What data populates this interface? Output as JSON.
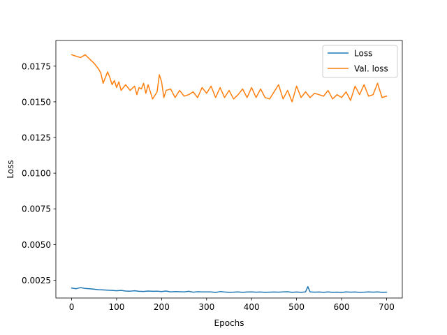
{
  "chart_data": {
    "type": "line",
    "title": "",
    "xlabel": "Epochs",
    "ylabel": "Loss",
    "xlim": [
      -35,
      735
    ],
    "ylim": [
      0.00125,
      0.0193
    ],
    "xticks": [
      0,
      100,
      200,
      300,
      400,
      500,
      600,
      700
    ],
    "xtick_labels": [
      "0",
      "100",
      "200",
      "300",
      "400",
      "500",
      "600",
      "700"
    ],
    "yticks": [
      0.0025,
      0.005,
      0.0075,
      0.01,
      0.0125,
      0.015,
      0.0175
    ],
    "ytick_labels": [
      "0.0025",
      "0.0050",
      "0.0075",
      "0.0100",
      "0.0125",
      "0.0150",
      "0.0175"
    ],
    "grid": false,
    "legend_position": "top-right",
    "series": [
      {
        "name": "Loss",
        "color": "#1f77b4",
        "x": [
          0,
          10,
          20,
          30,
          40,
          50,
          60,
          70,
          80,
          90,
          100,
          110,
          120,
          130,
          140,
          150,
          160,
          170,
          180,
          190,
          200,
          210,
          220,
          230,
          240,
          250,
          260,
          270,
          280,
          290,
          300,
          310,
          320,
          330,
          340,
          350,
          360,
          370,
          380,
          390,
          400,
          410,
          420,
          430,
          440,
          450,
          460,
          470,
          480,
          490,
          500,
          510,
          520,
          525,
          530,
          540,
          550,
          560,
          570,
          580,
          590,
          600,
          610,
          620,
          630,
          640,
          650,
          660,
          670,
          680,
          690,
          700
        ],
        "values": [
          0.00195,
          0.0019,
          0.00198,
          0.00192,
          0.0019,
          0.00187,
          0.00183,
          0.00182,
          0.0018,
          0.00178,
          0.00176,
          0.00178,
          0.00174,
          0.00173,
          0.00176,
          0.00172,
          0.00171,
          0.00174,
          0.00172,
          0.00173,
          0.0017,
          0.00174,
          0.00168,
          0.0017,
          0.00169,
          0.00168,
          0.00172,
          0.00166,
          0.00169,
          0.00168,
          0.00168,
          0.00168,
          0.00164,
          0.0017,
          0.00167,
          0.00165,
          0.00166,
          0.00168,
          0.00165,
          0.00167,
          0.00168,
          0.00166,
          0.00167,
          0.00165,
          0.00166,
          0.00167,
          0.00166,
          0.00168,
          0.00169,
          0.00165,
          0.00167,
          0.00165,
          0.00168,
          0.00205,
          0.00168,
          0.00166,
          0.00167,
          0.00165,
          0.00168,
          0.00165,
          0.00166,
          0.00164,
          0.00168,
          0.00166,
          0.00167,
          0.00165,
          0.00166,
          0.00168,
          0.00166,
          0.00168,
          0.00165,
          0.00166
        ]
      },
      {
        "name": "Val. loss",
        "color": "#ff7f0e",
        "x": [
          0,
          10,
          20,
          30,
          40,
          50,
          60,
          65,
          70,
          80,
          85,
          90,
          95,
          100,
          105,
          110,
          120,
          130,
          140,
          145,
          150,
          155,
          160,
          165,
          170,
          180,
          190,
          195,
          200,
          205,
          210,
          220,
          230,
          240,
          250,
          260,
          270,
          280,
          290,
          300,
          310,
          320,
          330,
          340,
          350,
          360,
          370,
          380,
          390,
          400,
          410,
          420,
          430,
          440,
          450,
          460,
          470,
          480,
          490,
          500,
          510,
          520,
          530,
          540,
          550,
          560,
          570,
          580,
          590,
          600,
          610,
          620,
          630,
          640,
          650,
          660,
          670,
          680,
          690,
          700
        ],
        "values": [
          0.0183,
          0.0182,
          0.0181,
          0.0183,
          0.018,
          0.0177,
          0.0173,
          0.017,
          0.0163,
          0.0171,
          0.0167,
          0.0162,
          0.0165,
          0.016,
          0.0164,
          0.0158,
          0.0162,
          0.0158,
          0.0161,
          0.0155,
          0.016,
          0.0159,
          0.0163,
          0.0156,
          0.0162,
          0.0152,
          0.0157,
          0.0169,
          0.0164,
          0.0153,
          0.0158,
          0.0159,
          0.0153,
          0.0158,
          0.0154,
          0.0155,
          0.0157,
          0.0153,
          0.016,
          0.0156,
          0.0161,
          0.0153,
          0.016,
          0.0153,
          0.0158,
          0.0152,
          0.0155,
          0.0159,
          0.0153,
          0.016,
          0.0153,
          0.0159,
          0.0153,
          0.0152,
          0.0157,
          0.0162,
          0.0152,
          0.0158,
          0.015,
          0.0161,
          0.0153,
          0.0157,
          0.0153,
          0.0156,
          0.0155,
          0.0154,
          0.0158,
          0.0152,
          0.0155,
          0.0153,
          0.0157,
          0.0151,
          0.0161,
          0.0155,
          0.0162,
          0.0154,
          0.0155,
          0.0163,
          0.0153,
          0.0154
        ]
      }
    ]
  }
}
